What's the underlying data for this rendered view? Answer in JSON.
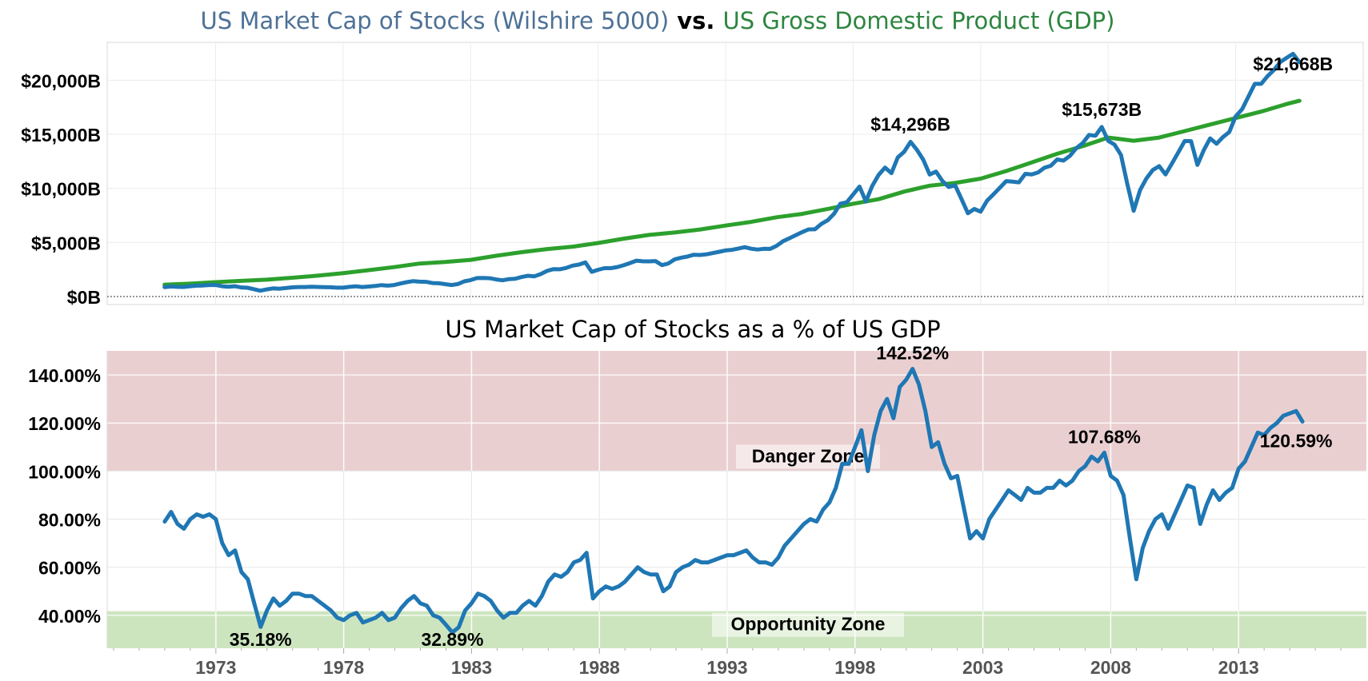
{
  "chart_data": [
    {
      "type": "line",
      "title_parts": [
        {
          "text": "US Market Cap of Stocks (Wilshire 5000)",
          "color": "#4e7196"
        },
        {
          "text": " vs. ",
          "color": "#000000"
        },
        {
          "text": "US Gross Domestic Product (GDP)",
          "color": "#2e8540"
        }
      ],
      "xlim": [
        1968.75,
        2018
      ],
      "ylim": [
        0,
        23500
      ],
      "y_ticks": [
        0,
        5000,
        10000,
        15000,
        20000
      ],
      "y_tick_labels": [
        "$0B",
        "$5,000B",
        "$10,000B",
        "$15,000B",
        "$20,000B"
      ],
      "grid": true,
      "series": [
        {
          "color": "#1f77b4",
          "values_by_year": {
            "1971": [
              869,
              932,
              893,
              888
            ],
            "1972": [
              952,
              1005,
              1021,
              1062
            ],
            "1973": [
              1064,
              952,
              904,
              951
            ],
            "1974": [
              841,
              813,
              677,
              540
            ],
            "1975": [
              655,
              754,
              726,
              780
            ],
            "1976": [
              853,
              876,
              881,
              904
            ],
            "1977": [
              888,
              875,
              859,
              820
            ],
            "1978": [
              821,
              892,
              943,
              877
            ],
            "1979": [
              927,
              979,
              1058,
              1007
            ],
            "1980": [
              1061,
              1205,
              1327,
              1425
            ],
            "1981": [
              1373,
              1357,
              1248,
              1230
            ],
            "1982": [
              1148,
              1066,
              1152,
              1403
            ],
            "1983": [
              1526,
              1708,
              1718,
              1691
            ],
            "1984": [
              1583,
              1503,
              1613,
              1647
            ],
            "1985": [
              1804,
              1920,
              1868,
              2073
            ],
            "1986": [
              2371,
              2534,
              2520,
              2642
            ],
            "1987": [
              2858,
              2958,
              3155,
              2287
            ],
            "1988": [
              2475,
              2626,
              2627,
              2730
            ],
            "1989": [
              2889,
              3100,
              3315,
              3256
            ],
            "1990": [
              3249,
              3280,
              2905,
              3050
            ],
            "1991": [
              3434,
              3594,
              3697,
              3862
            ],
            "1992": [
              3844,
              3900,
              4019,
              4141
            ],
            "1993": [
              4264,
              4319,
              4442,
              4566
            ],
            "1994": [
              4416,
              4345,
              4411,
              4406
            ],
            "1995": [
              4691,
              5112,
              5389,
              5672
            ],
            "1996": [
              5959,
              6204,
              6217,
              6707
            ],
            "1997": [
              7047,
              7645,
              8590,
              8714
            ],
            "1998": [
              9438,
              10161,
              8790,
              10229
            ],
            "1999": [
              11250,
              11928,
              11407,
              12859
            ],
            "2000": [
              13386,
              14296,
              13566,
              12641
            ],
            "2001": [
              11275,
              11551,
              10686,
              10125
            ],
            "2002": [
              10290,
              9010,
              7704,
              8100
            ],
            "2003": [
              7848,
              8860,
              9450,
              10054
            ],
            "2004": [
              10672,
              10620,
              10560,
              11346
            ],
            "2005": [
              11284,
              11466,
              11904,
              12090
            ],
            "2006": [
              12672,
              12573,
              13008,
              13725
            ],
            "2007": [
              14178,
              14946,
              14872,
              15673
            ],
            "2008": [
              14406,
              14040,
              13095,
              10422
            ],
            "2009": [
              7920,
              9843,
              10913,
              11700
            ],
            "2010": [
              12054,
              11286,
              12300,
              13332
            ],
            "2011": [
              14382,
              14369,
              12168,
              13545
            ],
            "2012": [
              14628,
              14124,
              14742,
              15206
            ],
            "2013": [
              16665,
              17316,
              18480,
              19662
            ],
            "2014": [
              19665,
              20385,
              20940,
              21679
            ],
            "2015": [
              22072,
              22438,
              21668
            ]
          }
        },
        {
          "color": "#2ca02c",
          "x": [
            1971,
            1972,
            1973,
            1974,
            1975,
            1976,
            1977,
            1978,
            1979,
            1980,
            1981,
            1982,
            1983,
            1984,
            1985,
            1986,
            1987,
            1988,
            1989,
            1990,
            1991,
            1992,
            1993,
            1994,
            1995,
            1996,
            1997,
            1998,
            1999,
            2000,
            2001,
            2002,
            2003,
            2004,
            2005,
            2006,
            2007,
            2008,
            2009,
            2010,
            2011,
            2012,
            2013,
            2014,
            2015,
            2015.5
          ],
          "values": [
            1100,
            1190,
            1330,
            1450,
            1560,
            1740,
            1930,
            2160,
            2440,
            2720,
            3050,
            3190,
            3390,
            3770,
            4100,
            4390,
            4610,
            4950,
            5350,
            5700,
            5920,
            6200,
            6560,
            6900,
            7330,
            7640,
            8100,
            8580,
            9000,
            9700,
            10250,
            10500,
            10900,
            11600,
            12400,
            13200,
            13900,
            14700,
            14400,
            14700,
            15300,
            15900,
            16500,
            17100,
            17800,
            18100
          ]
        }
      ],
      "annotations": [
        {
          "text": "$14,296B",
          "x": 2000.25,
          "y": 14296
        },
        {
          "text": "$15,673B",
          "x": 2007.75,
          "y": 15673
        },
        {
          "text": "$21,668B",
          "x": 2015.5,
          "y": 21668
        }
      ]
    },
    {
      "type": "line",
      "title": "US Market Cap of Stocks as a % of US GDP",
      "xlim": [
        1968.75,
        2018
      ],
      "ylim": [
        26.3,
        150
      ],
      "y_ticks": [
        40,
        60,
        80,
        100,
        120,
        140
      ],
      "y_tick_labels": [
        "40.00%",
        "60.00%",
        "80.00%",
        "100.00%",
        "120.00%",
        "140.00%"
      ],
      "x_ticks": [
        1973,
        1978,
        1983,
        1988,
        1993,
        1998,
        2003,
        2008,
        2013
      ],
      "x_tick_labels": [
        "1973",
        "1978",
        "1983",
        "1988",
        "1993",
        "1998",
        "2003",
        "2008",
        "2013"
      ],
      "grid": true,
      "zones": [
        {
          "label": "Danger Zone",
          "from": 100,
          "to": 150,
          "color": "#eacfd1"
        },
        {
          "label": "Opportunity Zone",
          "from": 26.3,
          "to": 41.7,
          "color": "#cde5bf"
        }
      ],
      "series": [
        {
          "color": "#1f77b4",
          "values_by_year": {
            "1971": [
              79,
              83,
              78,
              76
            ],
            "1972": [
              80,
              82,
              81,
              82
            ],
            "1973": [
              80,
              70,
              65,
              67
            ],
            "1974": [
              58,
              55,
              45,
              35.18
            ],
            "1975": [
              42,
              47,
              44,
              46
            ],
            "1976": [
              49,
              49,
              48,
              48
            ],
            "1977": [
              46,
              44,
              42,
              39
            ],
            "1978": [
              38,
              40,
              41,
              37
            ],
            "1979": [
              38,
              39,
              41,
              38
            ],
            "1980": [
              39,
              43,
              46,
              48
            ],
            "1981": [
              45,
              44,
              40,
              39
            ],
            "1982": [
              36,
              32.89,
              35,
              42
            ],
            "1983": [
              45,
              49,
              48,
              46
            ],
            "1984": [
              42,
              39,
              41,
              41
            ],
            "1985": [
              44,
              46,
              44,
              48
            ],
            "1986": [
              54,
              57,
              56,
              58
            ],
            "1987": [
              62,
              63,
              66,
              47
            ],
            "1988": [
              50,
              52,
              51,
              52
            ],
            "1989": [
              54,
              57,
              60,
              58
            ],
            "1990": [
              57,
              57,
              50,
              52
            ],
            "1991": [
              58,
              60,
              61,
              63
            ],
            "1992": [
              62,
              62,
              63,
              64
            ],
            "1993": [
              65,
              65,
              66,
              67
            ],
            "1994": [
              64,
              62,
              62,
              61
            ],
            "1995": [
              64,
              69,
              72,
              75
            ],
            "1996": [
              78,
              80,
              79,
              84
            ],
            "1997": [
              87,
              93,
              103,
              103
            ],
            "1998": [
              110,
              117,
              100,
              115
            ],
            "1999": [
              125,
              130,
              122,
              135
            ],
            "2000": [
              138,
              142.52,
              136,
              125
            ],
            "2001": [
              110,
              112,
              103,
              97
            ],
            "2002": [
              98,
              85,
              72,
              75
            ],
            "2003": [
              72,
              80,
              84,
              88
            ],
            "2004": [
              92,
              90,
              88,
              93
            ],
            "2005": [
              91,
              91,
              93,
              93
            ],
            "2006": [
              96,
              94,
              96,
              100
            ],
            "2007": [
              102,
              106,
              104,
              107.68
            ],
            "2008": [
              98,
              96,
              90,
              72
            ],
            "2009": [
              55,
              68,
              75,
              80
            ],
            "2010": [
              82,
              76,
              82,
              88
            ],
            "2011": [
              94,
              93,
              78,
              86
            ],
            "2012": [
              92,
              88,
              91,
              93
            ],
            "2013": [
              101,
              104,
              110,
              116
            ],
            "2014": [
              115,
              118,
              120,
              123
            ],
            "2015": [
              124,
              125,
              120.59
            ]
          }
        }
      ],
      "annotations": [
        {
          "text": "142.52%",
          "x": 2000.25,
          "y": 142.52
        },
        {
          "text": "107.68%",
          "x": 2007.75,
          "y": 107.68
        },
        {
          "text": "120.59%",
          "x": 2015.5,
          "y": 120.59
        },
        {
          "text": "35.18%",
          "x": 1974.75,
          "y": 35.18
        },
        {
          "text": "32.89%",
          "x": 1982.25,
          "y": 32.89
        }
      ]
    }
  ]
}
